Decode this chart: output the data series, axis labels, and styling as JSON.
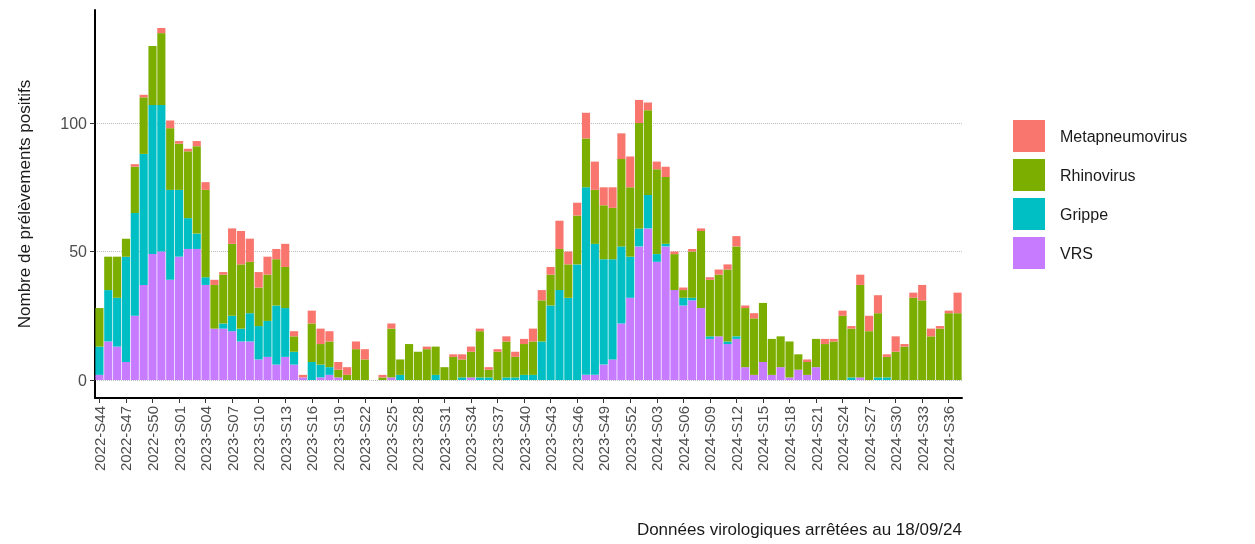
{
  "chart_data": {
    "type": "bar",
    "stacked": true,
    "ylabel": "Nombre de prélèvements positifs",
    "annotations": [
      "Données virologiques arrêtées au 18/09/24"
    ],
    "categories": [
      "2022-S44",
      null,
      null,
      "2022-S47",
      null,
      null,
      "2022-S50",
      null,
      null,
      "2023-S01",
      null,
      null,
      "2023-S04",
      null,
      null,
      "2023-S07",
      null,
      null,
      "2023-S10",
      null,
      null,
      "2023-S13",
      null,
      null,
      "2023-S16",
      null,
      null,
      "2023-S19",
      null,
      null,
      "2023-S22",
      null,
      null,
      "2023-S25",
      null,
      null,
      "2023-S28",
      null,
      null,
      "2023-S31",
      null,
      null,
      "2023-S34",
      null,
      null,
      "2023-S37",
      null,
      null,
      "2023-S40",
      null,
      null,
      "2023-S43",
      null,
      null,
      "2023-S46",
      null,
      null,
      "2023-S49",
      null,
      null,
      "2023-S52",
      null,
      null,
      "2024-S03",
      null,
      null,
      "2024-S06",
      null,
      null,
      "2024-S09",
      null,
      null,
      "2024-S12",
      null,
      null,
      "2024-S15",
      null,
      null,
      "2024-S18",
      null,
      null,
      "2024-S21",
      null,
      null,
      "2024-S24",
      null,
      null,
      "2024-S27",
      null,
      null,
      "2024-S30",
      null,
      null,
      "2024-S33",
      null,
      null,
      "2024-S36",
      null
    ],
    "series": [
      {
        "name": "VRS",
        "color": "#c77cff",
        "values": [
          2,
          15,
          13,
          7,
          25,
          37,
          49,
          50,
          39,
          48,
          51,
          51,
          37,
          20,
          20,
          19,
          15,
          15,
          8,
          9,
          6,
          9,
          6,
          1,
          0,
          1,
          2,
          1,
          0,
          0,
          0,
          0,
          0,
          1,
          0,
          0,
          0,
          0,
          0,
          0,
          0,
          0,
          1,
          0,
          0,
          0,
          0,
          0,
          0,
          0,
          0,
          0,
          0,
          0,
          0,
          2,
          2,
          6,
          8,
          22,
          32,
          52,
          59,
          46,
          52,
          35,
          29,
          31,
          28,
          16,
          17,
          14,
          16,
          5,
          2,
          7,
          2,
          5,
          1,
          4,
          2,
          5,
          0,
          0,
          0,
          0,
          1,
          0,
          0,
          0,
          0,
          0,
          0,
          0,
          0,
          0,
          0,
          0
        ]
      },
      {
        "name": "Grippe",
        "color": "#00bfc4",
        "values": [
          11,
          20,
          19,
          41,
          40,
          51,
          58,
          57,
          35,
          26,
          12,
          6,
          3,
          0,
          2,
          6,
          5,
          11,
          13,
          14,
          23,
          19,
          5,
          0,
          7,
          5,
          3,
          0,
          0,
          0,
          0,
          0,
          0,
          0,
          2,
          0,
          0,
          0,
          2,
          0,
          0,
          1,
          0,
          1,
          1,
          0,
          1,
          1,
          2,
          2,
          15,
          29,
          35,
          32,
          45,
          73,
          51,
          41,
          39,
          30,
          16,
          7,
          13,
          3,
          1,
          0,
          3,
          1,
          0,
          1,
          0,
          1,
          1,
          0,
          0,
          0,
          0,
          0,
          0,
          0,
          0,
          0,
          0,
          0,
          0,
          1,
          0,
          0,
          1,
          1,
          0,
          0,
          0,
          0,
          0,
          0,
          0,
          0
        ]
      },
      {
        "name": "Rhinovirus",
        "color": "#7cae00",
        "values": [
          15,
          13,
          16,
          7,
          18,
          22,
          23,
          28,
          24,
          18,
          26,
          34,
          34,
          17,
          19,
          28,
          25,
          20,
          15,
          18,
          18,
          16,
          6,
          0,
          15,
          8,
          10,
          3,
          2,
          12,
          8,
          0,
          1,
          19,
          6,
          14,
          11,
          12,
          11,
          5,
          9,
          7,
          10,
          18,
          3,
          11,
          14,
          8,
          12,
          13,
          16,
          12,
          16,
          13,
          19,
          19,
          21,
          21,
          20,
          34,
          27,
          41,
          33,
          33,
          26,
          14,
          3,
          18,
          30,
          22,
          24,
          28,
          35,
          23,
          22,
          23,
          14,
          12,
          14,
          6,
          5,
          11,
          14,
          15,
          25,
          19,
          36,
          19,
          25,
          8,
          11,
          13,
          32,
          31,
          17,
          20,
          26,
          26
        ]
      },
      {
        "name": "Metapneumovirus",
        "color": "#f8766d",
        "values": [
          0,
          0,
          0,
          0,
          1,
          1,
          0,
          2,
          3,
          1,
          1,
          2,
          3,
          2,
          1,
          6,
          13,
          9,
          6,
          7,
          4,
          9,
          2,
          1,
          5,
          6,
          4,
          3,
          3,
          3,
          4,
          0,
          1,
          2,
          0,
          0,
          0,
          1,
          0,
          0,
          1,
          2,
          2,
          1,
          1,
          1,
          2,
          2,
          2,
          5,
          4,
          3,
          11,
          5,
          5,
          10,
          11,
          7,
          8,
          10,
          12,
          9,
          3,
          3,
          4,
          1,
          1,
          1,
          1,
          1,
          2,
          2,
          4,
          1,
          2,
          0,
          0,
          0,
          0,
          0,
          1,
          0,
          2,
          1,
          2,
          1,
          4,
          6,
          7,
          1,
          6,
          1,
          2,
          6,
          3,
          1,
          1,
          8
        ]
      }
    ],
    "ylim": [
      -7,
      144
    ],
    "yticks": [
      0,
      50,
      100
    ],
    "grid": "y",
    "legend": "right"
  }
}
